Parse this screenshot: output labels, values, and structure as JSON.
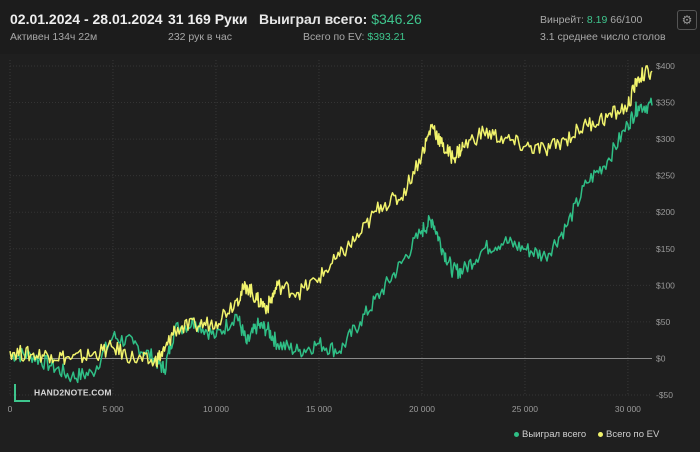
{
  "header": {
    "date_range": "02.01.2024 - 28.01.2024",
    "active_time": "Активен 134ч 22м",
    "hands": "31 169 Руки",
    "hands_per_hour": "232 рук в час",
    "won_label": "Выиграл всего:",
    "won_value": "$346.26",
    "ev_label": "Всего по EV:",
    "ev_value": "$393.21",
    "winrate_label": "Винрейт:",
    "winrate_value": "8.19",
    "winrate_unit": "66/100",
    "avg_tables": "3.1 среднее число столов"
  },
  "logo_text": "HAND2NOTE.COM",
  "colors": {
    "background": "#1f1f1f",
    "won_series": "#2fbf86",
    "ev_series": "#f1f36c",
    "zero_line": "#8a8a8a",
    "grid": "#3a3a3a"
  },
  "chart_data": {
    "type": "line",
    "xlim": [
      0,
      31169
    ],
    "ylim": [
      -50,
      400
    ],
    "x_ticks": [
      0,
      5000,
      10000,
      15000,
      20000,
      25000,
      30000
    ],
    "x_tick_labels": [
      "0",
      "5 000",
      "10 000",
      "15 000",
      "20 000",
      "25 000",
      "30 000"
    ],
    "y_ticks": [
      -50,
      0,
      50,
      100,
      150,
      200,
      250,
      300,
      350,
      400
    ],
    "y_tick_labels": [
      "-$50",
      "$0",
      "$50",
      "$100",
      "$150",
      "$200",
      "$250",
      "$300",
      "$350",
      "$400"
    ],
    "legend_position": "bottom-right",
    "series": [
      {
        "name": "Выиграл всего",
        "color": "#2fbf86",
        "x": [
          0,
          1000,
          2000,
          3000,
          4000,
          5000,
          6000,
          7000,
          7500,
          8000,
          9000,
          10000,
          11000,
          11500,
          12000,
          12500,
          13000,
          14000,
          15000,
          16000,
          17000,
          18000,
          19000,
          20000,
          20500,
          21000,
          21500,
          22000,
          23000,
          24000,
          25000,
          26000,
          27000,
          28000,
          29000,
          30000,
          30500,
          31169
        ],
        "y": [
          5,
          5,
          -10,
          -25,
          -20,
          30,
          20,
          0,
          -15,
          40,
          50,
          30,
          60,
          20,
          45,
          40,
          20,
          10,
          20,
          10,
          50,
          90,
          130,
          175,
          190,
          150,
          120,
          120,
          150,
          160,
          150,
          140,
          180,
          240,
          270,
          320,
          345,
          346
        ]
      },
      {
        "name": "Всего по EV",
        "color": "#f1f36c",
        "x": [
          0,
          1000,
          2000,
          3000,
          4000,
          5000,
          6000,
          7000,
          7500,
          8000,
          9000,
          10000,
          11000,
          11500,
          12000,
          12500,
          13000,
          14000,
          15000,
          16000,
          17000,
          18000,
          19000,
          20000,
          20500,
          21000,
          21500,
          22000,
          23000,
          24000,
          25000,
          26000,
          27000,
          28000,
          29000,
          30000,
          30500,
          31169
        ],
        "y": [
          10,
          5,
          5,
          0,
          5,
          15,
          0,
          -5,
          10,
          40,
          45,
          50,
          80,
          100,
          80,
          70,
          100,
          90,
          110,
          140,
          170,
          210,
          220,
          280,
          320,
          290,
          275,
          290,
          310,
          300,
          290,
          285,
          300,
          320,
          330,
          345,
          385,
          393
        ]
      }
    ]
  }
}
